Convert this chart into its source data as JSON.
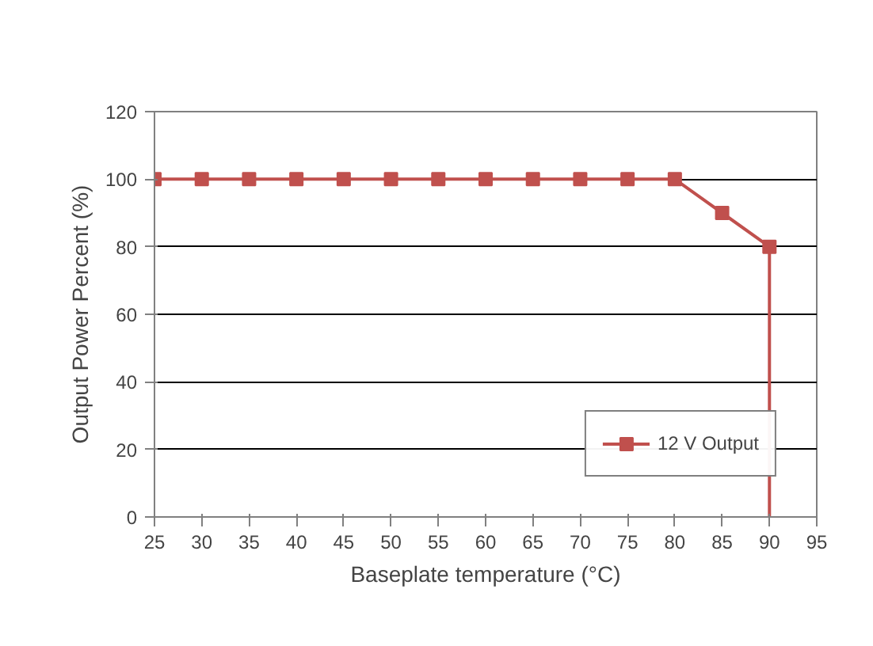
{
  "chart_data": {
    "type": "line",
    "xlabel": "Baseplate temperature (°C)",
    "ylabel": "Output Power Percent (%)",
    "xlim": [
      25,
      95
    ],
    "xticks": [
      25,
      30,
      35,
      40,
      45,
      50,
      55,
      60,
      65,
      70,
      75,
      80,
      85,
      90,
      95
    ],
    "ylim": [
      0,
      120
    ],
    "yticks": [
      0,
      20,
      40,
      60,
      80,
      100,
      120
    ],
    "series": [
      {
        "name": "12 V Output",
        "color": "#c0504d",
        "marker": "square",
        "x": [
          25,
          30,
          35,
          40,
          45,
          50,
          55,
          60,
          65,
          70,
          75,
          80,
          85,
          90
        ],
        "values": [
          100,
          100,
          100,
          100,
          100,
          100,
          100,
          100,
          100,
          100,
          100,
          100,
          90,
          80
        ]
      },
      {
        "color": "#c0504d",
        "marker": "none",
        "x": [
          90,
          90
        ],
        "values": [
          80,
          0
        ]
      }
    ],
    "grid": "y",
    "legend": "bottom right",
    "line_style": "solid"
  }
}
